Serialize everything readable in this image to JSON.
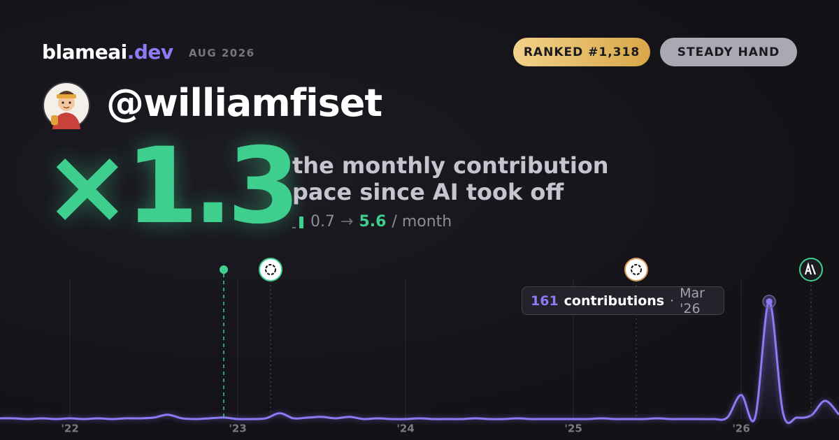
{
  "brand": {
    "name": "blameai",
    "tld": ".dev",
    "date": "AUG 2026"
  },
  "badges": [
    "RANKED #1,318",
    "STEADY HAND"
  ],
  "user": {
    "handle": "@williamfiset"
  },
  "multiplier": "×1.3",
  "description": [
    "the monthly contribution",
    "pace since AI took off"
  ],
  "pace": {
    "before": "0.7",
    "arrow": "→",
    "after": "5.6",
    "unit": "/ month"
  },
  "chart_data": {
    "type": "line",
    "color": "#8b7cf6",
    "x": [
      2021.583,
      2021.667,
      2021.75,
      2021.833,
      2021.917,
      2022,
      2022.083,
      2022.167,
      2022.25,
      2022.333,
      2022.417,
      2022.5,
      2022.583,
      2022.667,
      2022.75,
      2022.833,
      2022.917,
      2023,
      2023.083,
      2023.167,
      2023.25,
      2023.333,
      2023.417,
      2023.5,
      2023.583,
      2023.667,
      2023.75,
      2023.833,
      2023.917,
      2024,
      2024.083,
      2024.167,
      2024.25,
      2024.333,
      2024.417,
      2024.5,
      2024.583,
      2024.667,
      2024.75,
      2024.833,
      2024.917,
      2025,
      2025.083,
      2025.167,
      2025.25,
      2025.333,
      2025.417,
      2025.5,
      2025.583,
      2025.667,
      2025.75,
      2025.833,
      2025.917,
      2026,
      2026.083,
      2026.167,
      2026.25,
      2026.333,
      2026.417,
      2026.5,
      2026.583
    ],
    "values": [
      1,
      1,
      0,
      1,
      0,
      1,
      0,
      1,
      0,
      1,
      1,
      2,
      6,
      1,
      0,
      1,
      2,
      0,
      0,
      1,
      8,
      1,
      2,
      3,
      1,
      3,
      0,
      1,
      0,
      0,
      1,
      0,
      0,
      0,
      1,
      0,
      0,
      1,
      0,
      0,
      0,
      0,
      0,
      1,
      0,
      0,
      0,
      1,
      0,
      0,
      0,
      0,
      2,
      33,
      2,
      161,
      8,
      2,
      5,
      25,
      6
    ],
    "xlim": [
      2021.583,
      2026.583
    ],
    "xticks": [
      {
        "value": 2022,
        "label": "'22"
      },
      {
        "value": 2023,
        "label": "'23"
      },
      {
        "value": 2024,
        "label": "'24"
      },
      {
        "value": 2025,
        "label": "'25"
      },
      {
        "value": 2026,
        "label": "'26"
      }
    ],
    "ylim": [
      0,
      200
    ],
    "grid": true,
    "tooltip": {
      "value": 161,
      "label": "contributions",
      "separator": "·",
      "date": "Mar '26"
    }
  }
}
